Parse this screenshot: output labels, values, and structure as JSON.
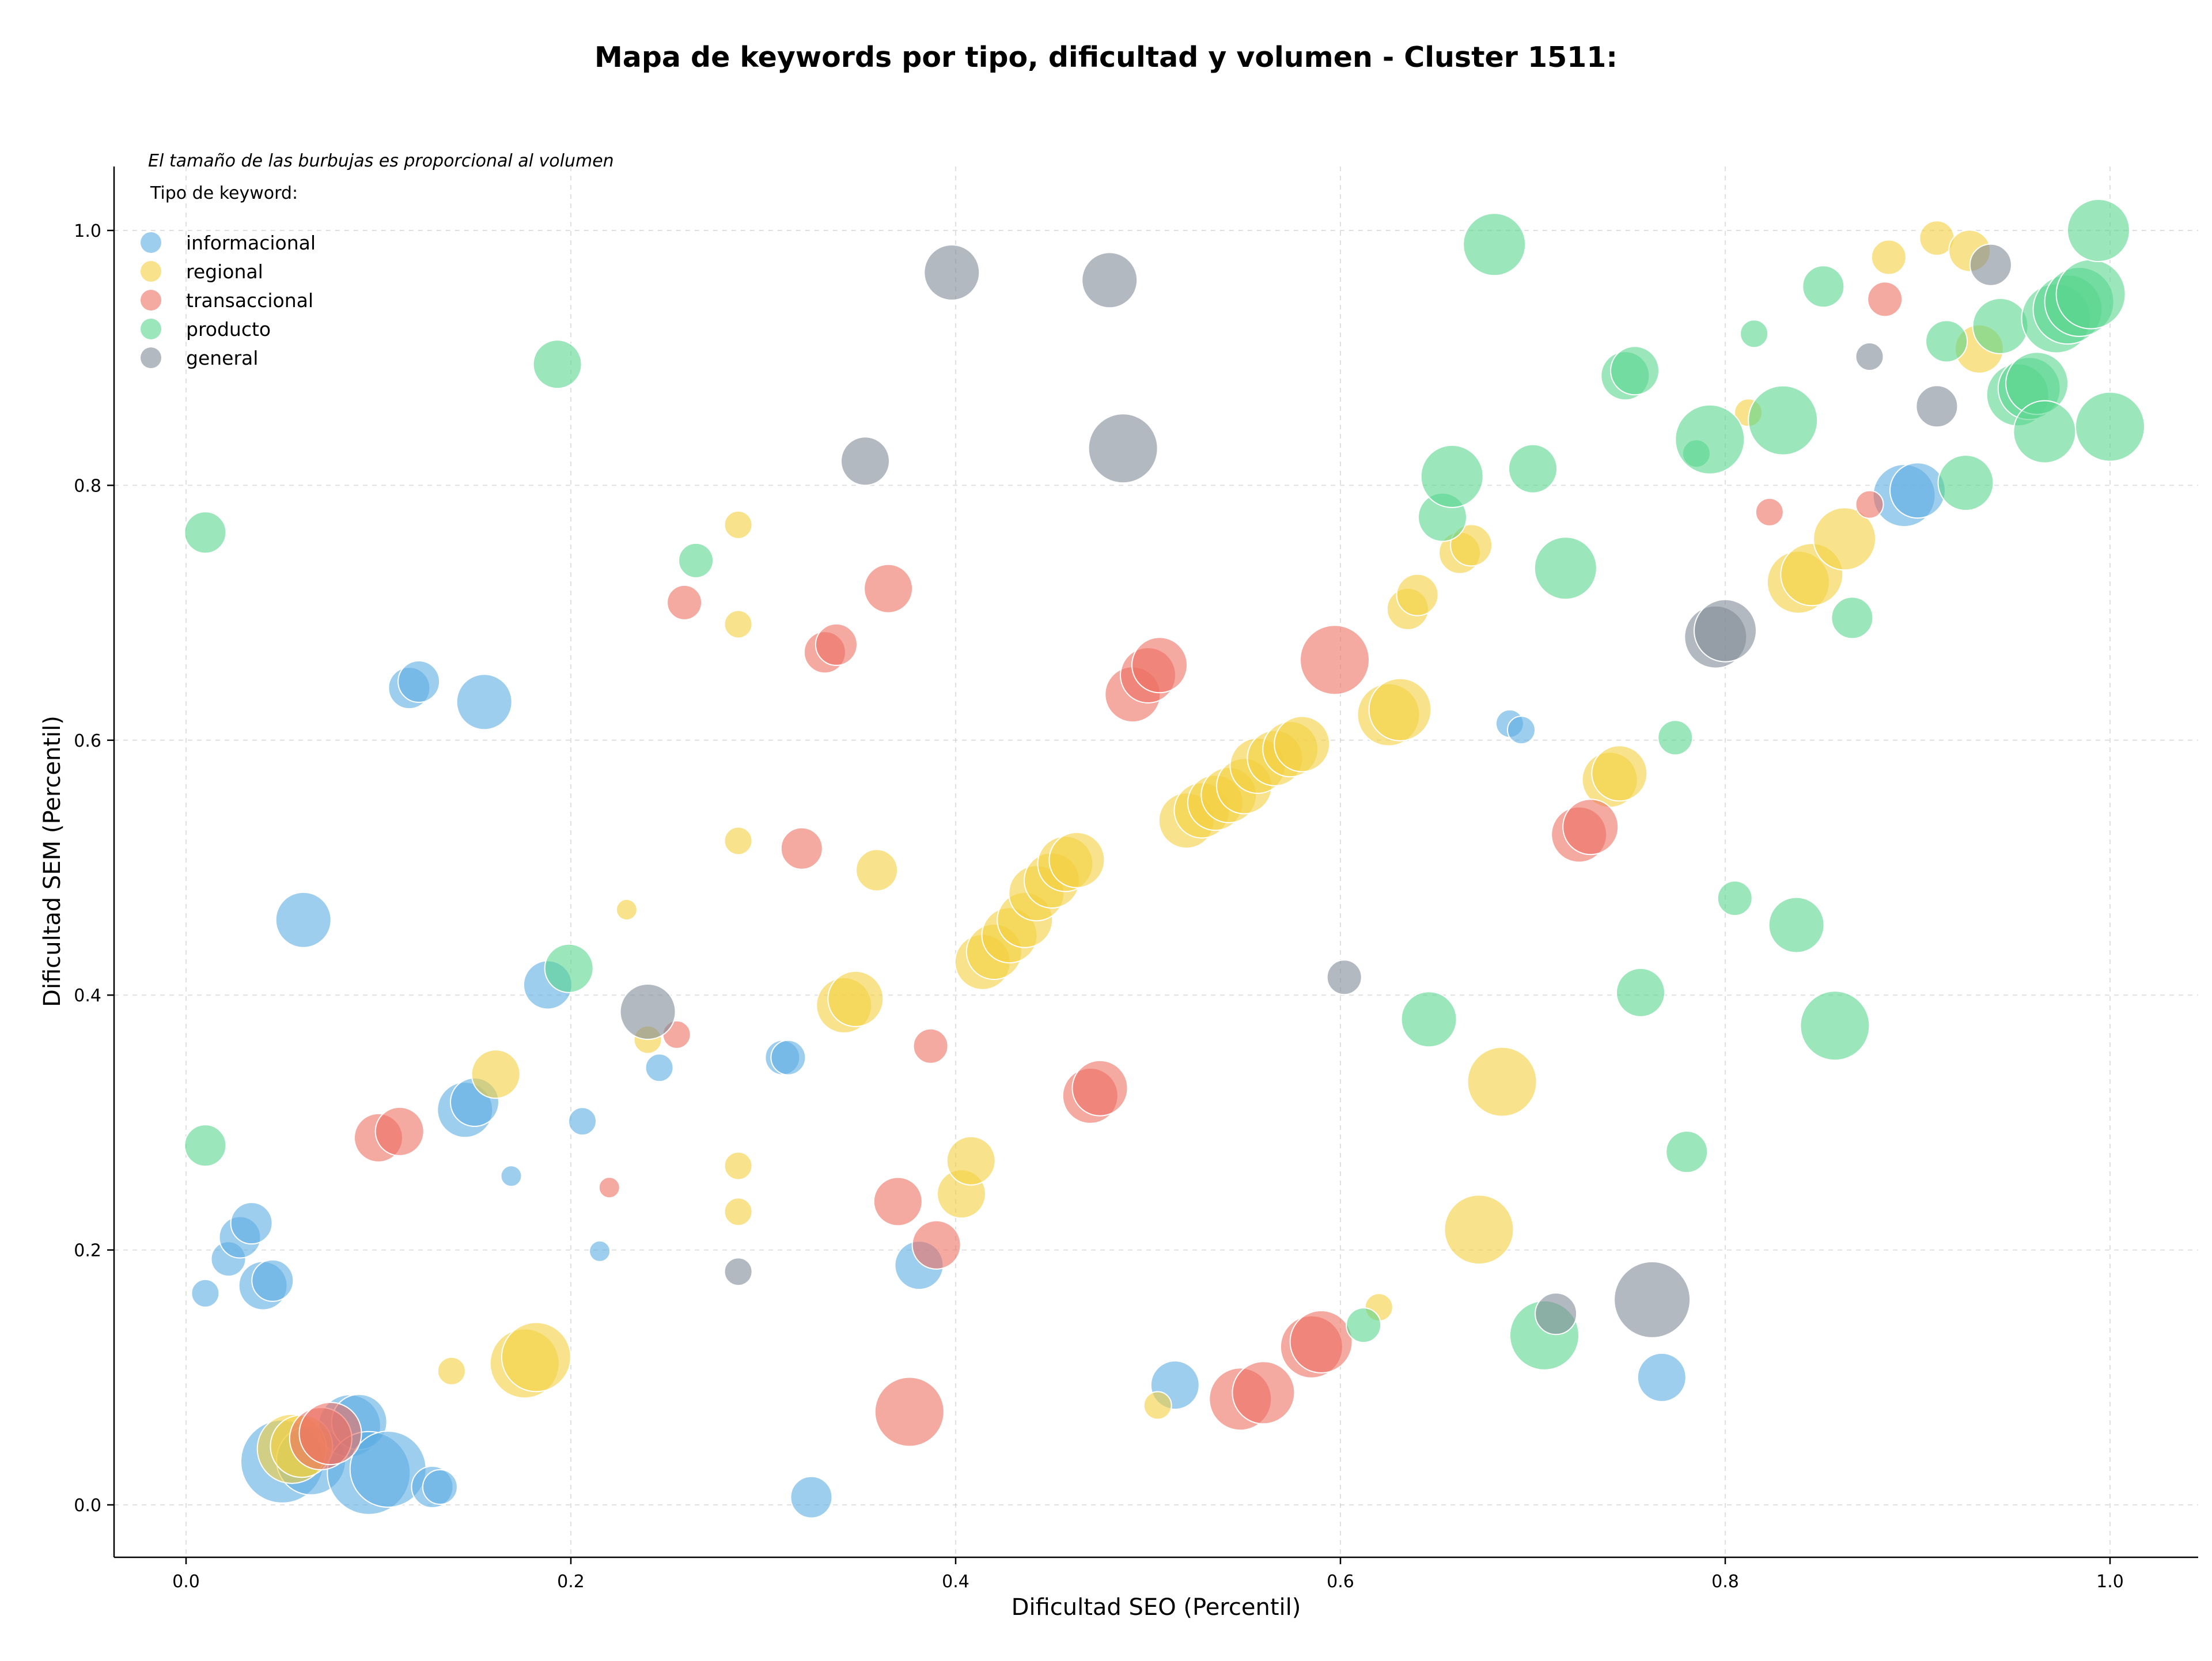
{
  "chart_data": {
    "type": "scatter",
    "title": "Mapa de keywords por tipo, dificultad y volumen - Cluster 1511:",
    "xlabel": "Dificultad SEO (Percentil)",
    "ylabel": "Dificultad SEM (Percentil)",
    "xlim": [
      -0.04,
      1.05
    ],
    "ylim": [
      -0.045,
      1.05
    ],
    "xticks": [
      0.0,
      0.2,
      0.4,
      0.6,
      0.8,
      1.0
    ],
    "yticks": [
      0.0,
      0.2,
      0.4,
      0.6,
      0.8,
      1.0
    ],
    "xtick_labels": [
      "0.0",
      "0.2",
      "0.4",
      "0.6",
      "0.8",
      "1.0"
    ],
    "ytick_labels": [
      "0.0",
      "0.2",
      "0.4",
      "0.6",
      "0.8",
      "1.0"
    ],
    "grid": true,
    "legend_position": "top-left",
    "legend_title": "Tipo de keyword:",
    "note": "El tamaño de las burbujas es proporcional al volumen",
    "size_encoding": "volume (relative)",
    "series": [
      {
        "name": "informacional",
        "color": "#5DADE2",
        "points": [
          [
            0.01,
            0.166,
            4
          ],
          [
            0.022,
            0.193,
            5
          ],
          [
            0.028,
            0.21,
            6
          ],
          [
            0.034,
            0.221,
            6
          ],
          [
            0.04,
            0.172,
            7
          ],
          [
            0.045,
            0.176,
            6
          ],
          [
            0.05,
            0.034,
            12
          ],
          [
            0.065,
            0.035,
            10
          ],
          [
            0.085,
            0.062,
            9
          ],
          [
            0.09,
            0.065,
            8
          ],
          [
            0.095,
            0.025,
            12
          ],
          [
            0.105,
            0.028,
            11
          ],
          [
            0.128,
            0.014,
            6
          ],
          [
            0.132,
            0.014,
            5
          ],
          [
            0.061,
            0.459,
            8
          ],
          [
            0.116,
            0.641,
            6
          ],
          [
            0.121,
            0.646,
            6
          ],
          [
            0.155,
            0.63,
            8
          ],
          [
            0.188,
            0.408,
            7
          ],
          [
            0.145,
            0.31,
            8
          ],
          [
            0.15,
            0.316,
            7
          ],
          [
            0.169,
            0.258,
            3
          ],
          [
            0.206,
            0.301,
            4
          ],
          [
            0.215,
            0.199,
            3
          ],
          [
            0.246,
            0.343,
            4
          ],
          [
            0.31,
            0.351,
            5
          ],
          [
            0.313,
            0.351,
            5
          ],
          [
            0.325,
            0.006,
            6
          ],
          [
            0.381,
            0.188,
            7
          ],
          [
            0.514,
            0.094,
            7
          ],
          [
            0.688,
            0.613,
            4
          ],
          [
            0.694,
            0.608,
            4
          ],
          [
            0.767,
            0.1,
            7
          ],
          [
            0.893,
            0.792,
            9
          ],
          [
            0.9,
            0.796,
            8
          ]
        ]
      },
      {
        "name": "regional",
        "color": "#F4D03F",
        "points": [
          [
            0.055,
            0.044,
            10
          ],
          [
            0.06,
            0.046,
            9
          ],
          [
            0.138,
            0.105,
            4
          ],
          [
            0.161,
            0.338,
            7
          ],
          [
            0.176,
            0.111,
            10
          ],
          [
            0.182,
            0.116,
            10
          ],
          [
            0.229,
            0.467,
            3
          ],
          [
            0.24,
            0.365,
            4
          ],
          [
            0.287,
            0.769,
            4
          ],
          [
            0.287,
            0.691,
            4
          ],
          [
            0.287,
            0.521,
            4
          ],
          [
            0.287,
            0.266,
            4
          ],
          [
            0.287,
            0.23,
            4
          ],
          [
            0.342,
            0.392,
            8
          ],
          [
            0.348,
            0.397,
            8
          ],
          [
            0.359,
            0.498,
            6
          ],
          [
            0.403,
            0.244,
            7
          ],
          [
            0.408,
            0.27,
            7
          ],
          [
            0.414,
            0.426,
            8
          ],
          [
            0.42,
            0.434,
            8
          ],
          [
            0.428,
            0.447,
            8
          ],
          [
            0.436,
            0.459,
            8
          ],
          [
            0.442,
            0.48,
            8
          ],
          [
            0.45,
            0.49,
            8
          ],
          [
            0.457,
            0.503,
            8
          ],
          [
            0.463,
            0.506,
            8
          ],
          [
            0.52,
            0.537,
            8
          ],
          [
            0.528,
            0.545,
            8
          ],
          [
            0.535,
            0.551,
            8
          ],
          [
            0.542,
            0.557,
            8
          ],
          [
            0.55,
            0.564,
            8
          ],
          [
            0.557,
            0.58,
            8
          ],
          [
            0.566,
            0.586,
            8
          ],
          [
            0.574,
            0.593,
            8
          ],
          [
            0.58,
            0.597,
            8
          ],
          [
            0.62,
            0.155,
            4
          ],
          [
            0.505,
            0.078,
            4
          ],
          [
            0.625,
            0.62,
            9
          ],
          [
            0.631,
            0.624,
            9
          ],
          [
            0.635,
            0.703,
            6
          ],
          [
            0.64,
            0.714,
            6
          ],
          [
            0.662,
            0.747,
            6
          ],
          [
            0.668,
            0.753,
            6
          ],
          [
            0.672,
            0.216,
            10
          ],
          [
            0.684,
            0.332,
            10
          ],
          [
            0.74,
            0.569,
            8
          ],
          [
            0.745,
            0.574,
            8
          ],
          [
            0.838,
            0.724,
            9
          ],
          [
            0.845,
            0.73,
            9
          ],
          [
            0.862,
            0.758,
            9
          ],
          [
            0.812,
            0.857,
            4
          ],
          [
            0.885,
            0.979,
            5
          ],
          [
            0.91,
            0.994,
            5
          ],
          [
            0.927,
            0.984,
            6
          ],
          [
            0.932,
            0.907,
            7
          ]
        ]
      },
      {
        "name": "transaccional",
        "color": "#EC7063",
        "points": [
          [
            0.07,
            0.052,
            9
          ],
          [
            0.075,
            0.056,
            9
          ],
          [
            0.1,
            0.288,
            7
          ],
          [
            0.111,
            0.293,
            7
          ],
          [
            0.22,
            0.249,
            3
          ],
          [
            0.255,
            0.369,
            4
          ],
          [
            0.259,
            0.708,
            5
          ],
          [
            0.32,
            0.515,
            6
          ],
          [
            0.332,
            0.669,
            6
          ],
          [
            0.338,
            0.675,
            6
          ],
          [
            0.365,
            0.719,
            7
          ],
          [
            0.37,
            0.238,
            7
          ],
          [
            0.387,
            0.36,
            5
          ],
          [
            0.39,
            0.204,
            7
          ],
          [
            0.376,
            0.073,
            10
          ],
          [
            0.47,
            0.321,
            8
          ],
          [
            0.475,
            0.327,
            8
          ],
          [
            0.492,
            0.636,
            8
          ],
          [
            0.5,
            0.651,
            8
          ],
          [
            0.506,
            0.659,
            8
          ],
          [
            0.548,
            0.083,
            9
          ],
          [
            0.56,
            0.088,
            9
          ],
          [
            0.585,
            0.124,
            9
          ],
          [
            0.59,
            0.128,
            9
          ],
          [
            0.597,
            0.663,
            10
          ],
          [
            0.724,
            0.526,
            8
          ],
          [
            0.73,
            0.532,
            8
          ],
          [
            0.823,
            0.779,
            4
          ],
          [
            0.875,
            0.785,
            4
          ],
          [
            0.883,
            0.946,
            5
          ]
        ]
      },
      {
        "name": "producto",
        "color": "#58D68D",
        "points": [
          [
            0.01,
            0.763,
            6
          ],
          [
            0.01,
            0.282,
            6
          ],
          [
            0.193,
            0.895,
            7
          ],
          [
            0.199,
            0.421,
            7
          ],
          [
            0.265,
            0.741,
            5
          ],
          [
            0.612,
            0.141,
            5
          ],
          [
            0.646,
            0.381,
            8
          ],
          [
            0.653,
            0.775,
            7
          ],
          [
            0.658,
            0.807,
            9
          ],
          [
            0.68,
            0.989,
            9
          ],
          [
            0.7,
            0.813,
            7
          ],
          [
            0.706,
            0.133,
            10
          ],
          [
            0.717,
            0.735,
            9
          ],
          [
            0.748,
            0.886,
            7
          ],
          [
            0.753,
            0.89,
            7
          ],
          [
            0.756,
            0.402,
            7
          ],
          [
            0.774,
            0.602,
            5
          ],
          [
            0.78,
            0.277,
            6
          ],
          [
            0.785,
            0.825,
            4
          ],
          [
            0.792,
            0.836,
            10
          ],
          [
            0.805,
            0.476,
            5
          ],
          [
            0.815,
            0.919,
            4
          ],
          [
            0.83,
            0.851,
            10
          ],
          [
            0.837,
            0.455,
            8
          ],
          [
            0.851,
            0.956,
            6
          ],
          [
            0.857,
            0.376,
            10
          ],
          [
            0.866,
            0.696,
            6
          ],
          [
            0.915,
            0.913,
            6
          ],
          [
            0.925,
            0.802,
            8
          ],
          [
            0.943,
            0.925,
            8
          ],
          [
            0.952,
            0.871,
            9
          ],
          [
            0.958,
            0.876,
            9
          ],
          [
            0.962,
            0.88,
            9
          ],
          [
            0.966,
            0.842,
            9
          ],
          [
            0.972,
            0.931,
            10
          ],
          [
            0.978,
            0.938,
            10
          ],
          [
            0.984,
            0.944,
            10
          ],
          [
            0.99,
            0.95,
            10
          ],
          [
            0.994,
            1.0,
            9
          ],
          [
            1.0,
            0.846,
            10
          ]
        ]
      },
      {
        "name": "general",
        "color": "#808B96",
        "points": [
          [
            0.24,
            0.387,
            8
          ],
          [
            0.287,
            0.183,
            4
          ],
          [
            0.353,
            0.819,
            7
          ],
          [
            0.398,
            0.967,
            8
          ],
          [
            0.48,
            0.961,
            8
          ],
          [
            0.487,
            0.829,
            10
          ],
          [
            0.602,
            0.414,
            5
          ],
          [
            0.712,
            0.15,
            6
          ],
          [
            0.762,
            0.161,
            11
          ],
          [
            0.795,
            0.681,
            9
          ],
          [
            0.8,
            0.686,
            9
          ],
          [
            0.875,
            0.901,
            4
          ],
          [
            0.91,
            0.862,
            6
          ],
          [
            0.938,
            0.973,
            6
          ]
        ]
      }
    ]
  }
}
